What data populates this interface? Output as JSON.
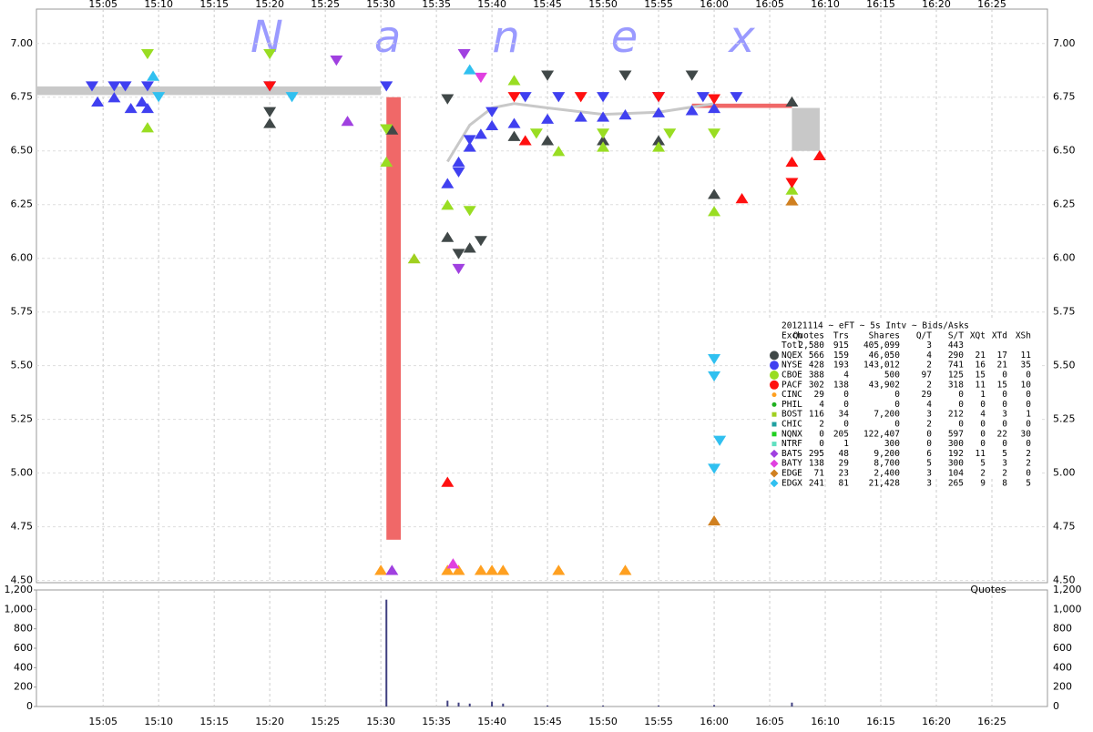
{
  "chart_data": {
    "type": "scatter",
    "logo": "Nanex",
    "xlim": [
      -1,
      90
    ],
    "xticks": [
      {
        "value": 5,
        "label": "15:05"
      },
      {
        "value": 10,
        "label": "15:10"
      },
      {
        "value": 15,
        "label": "15:15"
      },
      {
        "value": 20,
        "label": "15:20"
      },
      {
        "value": 25,
        "label": "15:25"
      },
      {
        "value": 30,
        "label": "15:30"
      },
      {
        "value": 35,
        "label": "15:35"
      },
      {
        "value": 40,
        "label": "15:40"
      },
      {
        "value": 45,
        "label": "15:45"
      },
      {
        "value": 50,
        "label": "15:50"
      },
      {
        "value": 55,
        "label": "15:55"
      },
      {
        "value": 60,
        "label": "16:00"
      },
      {
        "value": 65,
        "label": "16:05"
      },
      {
        "value": 70,
        "label": "16:10"
      },
      {
        "value": 75,
        "label": "16:15"
      },
      {
        "value": 80,
        "label": "16:20"
      },
      {
        "value": 85,
        "label": "16:25"
      }
    ],
    "ylim": [
      4.49,
      7.16
    ],
    "yticks": [
      {
        "value": 4.5,
        "label": "4.50"
      },
      {
        "value": 4.75,
        "label": "4.75"
      },
      {
        "value": 5,
        "label": "5.00"
      },
      {
        "value": 5.25,
        "label": "5.25"
      },
      {
        "value": 5.5,
        "label": "5.50"
      },
      {
        "value": 5.75,
        "label": "5.75"
      },
      {
        "value": 6,
        "label": "6.00"
      },
      {
        "value": 6.25,
        "label": "6.25"
      },
      {
        "value": 6.5,
        "label": "6.50"
      },
      {
        "value": 6.75,
        "label": "6.75"
      },
      {
        "value": 7,
        "label": "7.00"
      }
    ],
    "grid": true,
    "bands": [
      {
        "x": [
          -1,
          30
        ],
        "range": [
          6.76,
          6.8
        ],
        "color": "#c8c8c8"
      },
      {
        "x": [
          30.5,
          31.8
        ],
        "range": [
          4.69,
          6.75
        ],
        "color": "#f06868"
      },
      {
        "x": [
          58,
          67
        ],
        "range": [
          6.7,
          6.72
        ],
        "color": "#f06868"
      },
      {
        "x": [
          67,
          69.5
        ],
        "range": [
          6.5,
          6.7
        ],
        "color": "#c8c8c8"
      }
    ],
    "nbbo": {
      "color": "#c8c8c8",
      "x": [
        36,
        38,
        40,
        42,
        45,
        50,
        55,
        60
      ],
      "values": [
        6.45,
        6.62,
        6.7,
        6.72,
        6.7,
        6.67,
        6.68,
        6.72
      ]
    },
    "legend": {
      "title": "20121114 ~ eFT ~ 5s Intv ~ Bids/Asks",
      "columns": [
        "Exch",
        "Quotes",
        "Trs",
        "Shares",
        "Q/T",
        "S/T",
        "XQt",
        "XTd",
        "XSh"
      ],
      "total": {
        "name": "Totl",
        "stats": [
          "2,580",
          "915",
          "405,099",
          "3",
          "443"
        ]
      }
    },
    "series": [
      {
        "name": "NQEX",
        "color": "#404848",
        "marker": "circle",
        "stats": [
          "566",
          "159",
          "46,050",
          "4",
          "290",
          "21",
          "17",
          "11"
        ],
        "x": [
          20,
          31,
          36,
          38,
          42,
          45,
          50,
          55,
          60,
          67
        ],
        "values": [
          6.63,
          6.6,
          6.1,
          6.05,
          6.57,
          6.55,
          6.55,
          6.55,
          6.3,
          6.73
        ],
        "ask_x": [
          20,
          36,
          37,
          39,
          45,
          52,
          58
        ],
        "asks": [
          6.68,
          6.74,
          6.02,
          6.08,
          6.85,
          6.85,
          6.85
        ]
      },
      {
        "name": "NYSE",
        "color": "#4040f0",
        "marker": "circle",
        "stats": [
          "428",
          "193",
          "143,012",
          "2",
          "741",
          "16",
          "21",
          "35"
        ],
        "x": [
          4.5,
          6,
          7.5,
          8.5,
          9,
          36,
          37,
          38,
          39,
          40,
          42,
          45,
          48,
          50,
          52,
          55,
          58,
          60
        ],
        "values": [
          6.73,
          6.75,
          6.7,
          6.73,
          6.7,
          6.35,
          6.45,
          6.52,
          6.58,
          6.62,
          6.63,
          6.65,
          6.66,
          6.66,
          6.67,
          6.68,
          6.69,
          6.7
        ],
        "ask_x": [
          4,
          6,
          7,
          9,
          20,
          30.5,
          37,
          38,
          40,
          43,
          46,
          50,
          55,
          59,
          62
        ],
        "asks": [
          6.8,
          6.8,
          6.8,
          6.8,
          6.8,
          6.8,
          6.4,
          6.55,
          6.68,
          6.75,
          6.75,
          6.75,
          6.75,
          6.75,
          6.75
        ]
      },
      {
        "name": "CBOE",
        "color": "#99dd22",
        "marker": "circle",
        "stats": [
          "388",
          "4",
          "500",
          "97",
          "125",
          "15",
          "0",
          "0"
        ],
        "x": [
          9,
          30.5,
          36,
          42,
          46,
          50,
          55,
          60,
          67
        ],
        "values": [
          6.61,
          6.45,
          6.25,
          6.83,
          6.5,
          6.52,
          6.52,
          6.22,
          6.32
        ],
        "ask_x": [
          9,
          20,
          30.5,
          38,
          44,
          50,
          56,
          60
        ],
        "asks": [
          6.95,
          6.95,
          6.6,
          6.22,
          6.58,
          6.58,
          6.58,
          6.58
        ]
      },
      {
        "name": "PACF",
        "color": "#ff1010",
        "marker": "circle",
        "stats": [
          "302",
          "138",
          "43,902",
          "2",
          "318",
          "11",
          "15",
          "10"
        ],
        "x": [
          36,
          43,
          62.5,
          67,
          69.5
        ],
        "values": [
          4.96,
          6.55,
          6.28,
          6.45,
          6.48
        ],
        "ask_x": [
          20,
          42,
          48,
          55,
          60,
          67
        ],
        "asks": [
          6.8,
          6.75,
          6.75,
          6.75,
          6.74,
          6.35
        ]
      },
      {
        "name": "CINC",
        "color": "#ffa020",
        "marker": "dot",
        "stats": [
          "29",
          "0",
          "0",
          "29",
          "0",
          "1",
          "0",
          "0"
        ],
        "x": [
          30,
          36,
          37,
          39,
          40,
          41,
          46,
          52
        ],
        "values": [
          4.55,
          4.55,
          4.55,
          4.55,
          4.55,
          4.55,
          4.55,
          4.55
        ],
        "ask_x": [],
        "asks": []
      },
      {
        "name": "PHIL",
        "color": "#20b020",
        "marker": "dot",
        "stats": [
          "4",
          "0",
          "0",
          "4",
          "0",
          "0",
          "0",
          "0"
        ],
        "x": [],
        "values": [],
        "ask_x": [],
        "asks": []
      },
      {
        "name": "BOST",
        "color": "#a0d020",
        "marker": "square",
        "stats": [
          "116",
          "34",
          "7,200",
          "3",
          "212",
          "4",
          "3",
          "1"
        ],
        "x": [
          33
        ],
        "values": [
          6.0
        ],
        "ask_x": [],
        "asks": []
      },
      {
        "name": "CHIC",
        "color": "#20a0a0",
        "marker": "square",
        "stats": [
          "2",
          "0",
          "0",
          "2",
          "0",
          "0",
          "0",
          "0"
        ],
        "x": [],
        "values": [],
        "ask_x": [],
        "asks": []
      },
      {
        "name": "NQNX",
        "color": "#20d020",
        "marker": "square",
        "stats": [
          "0",
          "205",
          "122,407",
          "0",
          "597",
          "0",
          "22",
          "30"
        ],
        "x": [],
        "values": [],
        "ask_x": [],
        "asks": []
      },
      {
        "name": "NTRF",
        "color": "#60e0c0",
        "marker": "square",
        "stats": [
          "0",
          "1",
          "300",
          "0",
          "300",
          "0",
          "0",
          "0"
        ],
        "x": [],
        "values": [],
        "ask_x": [],
        "asks": []
      },
      {
        "name": "BATS",
        "color": "#a040e0",
        "marker": "diamond",
        "stats": [
          "295",
          "48",
          "9,200",
          "6",
          "192",
          "11",
          "5",
          "2"
        ],
        "x": [
          27,
          31
        ],
        "values": [
          6.64,
          4.55
        ],
        "ask_x": [
          26,
          37,
          37.5
        ],
        "asks": [
          6.92,
          5.95,
          6.95
        ]
      },
      {
        "name": "BATY",
        "color": "#e040e0",
        "marker": "diamond",
        "stats": [
          "138",
          "29",
          "8,700",
          "5",
          "300",
          "5",
          "3",
          "2"
        ],
        "x": [
          36.5
        ],
        "values": [
          4.58
        ],
        "ask_x": [
          39
        ],
        "asks": [
          6.84
        ]
      },
      {
        "name": "EDGE",
        "color": "#d08020",
        "marker": "diamond",
        "stats": [
          "71",
          "23",
          "2,400",
          "3",
          "104",
          "2",
          "2",
          "0"
        ],
        "x": [
          60,
          67
        ],
        "values": [
          4.78,
          6.27
        ],
        "ask_x": [],
        "asks": []
      },
      {
        "name": "EDGX",
        "color": "#30c0f0",
        "marker": "diamond",
        "stats": [
          "241",
          "81",
          "21,428",
          "3",
          "265",
          "9",
          "8",
          "5"
        ],
        "x": [
          9.5,
          38
        ],
        "values": [
          6.85,
          6.88
        ],
        "ask_x": [
          10,
          22,
          60,
          60,
          60,
          60.5
        ],
        "asks": [
          6.75,
          6.75,
          5.53,
          5.45,
          5.02,
          5.15
        ]
      }
    ],
    "volume": {
      "label": "Quotes",
      "color": "#404080",
      "ylim": [
        0,
        1200
      ],
      "yticks": [
        0,
        200,
        400,
        600,
        800,
        {
          "value": 1000,
          "label": "1,000"
        },
        {
          "value": 1200,
          "label": "1,200"
        }
      ],
      "x": [
        30.5,
        36,
        37,
        38,
        40,
        41,
        45,
        50,
        55,
        60,
        67
      ],
      "values": [
        1100,
        60,
        40,
        30,
        50,
        30,
        10,
        10,
        10,
        15,
        40
      ]
    }
  }
}
